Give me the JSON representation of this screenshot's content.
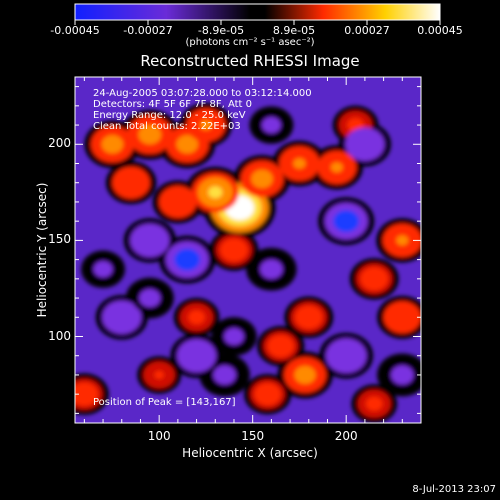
{
  "colorbar": {
    "tick_labels": [
      "-0.00045",
      "-0.00027",
      "-8.9e-05",
      "8.9e-05",
      "0.00027",
      "0.00045"
    ],
    "units": "(photons cm⁻² s⁻¹ asec⁻²)",
    "colors": [
      "#1020ff",
      "#6a2bd8",
      "#000000",
      "#ff2a00",
      "#ffd000",
      "#ffffff"
    ]
  },
  "info": {
    "time_range": "24-Aug-2005 03:07:28.000 to 03:12:14.000",
    "detectors": "Detectors: 4F 5F 6F 7F 8F, Att 0",
    "energy": "Energy Range: 12.0 - 25.0 keV",
    "clean": "Clean     Total counts: 2.22E+03",
    "peak": "Position of Peak = [143,167]"
  },
  "footer": "8-Jul-2013 23:07",
  "chart_data": {
    "type": "heatmap",
    "title": "Reconstructed RHESSI Image",
    "xlabel": "Heliocentric X (arcsec)",
    "ylabel": "Heliocentric Y (arcsec)",
    "xlim": [
      55,
      240
    ],
    "ylim": [
      55,
      235
    ],
    "x_ticks": [
      100,
      150,
      200
    ],
    "y_ticks": [
      100,
      150,
      200
    ],
    "peak": [
      143,
      167
    ],
    "intensity_range": [
      -0.00045,
      0.00045
    ],
    "sources": [
      {
        "x": 143,
        "y": 167,
        "value": 0.00045
      },
      {
        "x": 130,
        "y": 175,
        "value": 0.0003
      },
      {
        "x": 155,
        "y": 182,
        "value": 0.00025
      },
      {
        "x": 175,
        "y": 190,
        "value": 0.00022
      },
      {
        "x": 195,
        "y": 188,
        "value": 0.0002
      },
      {
        "x": 75,
        "y": 200,
        "value": 0.00025
      },
      {
        "x": 95,
        "y": 205,
        "value": 0.00028
      },
      {
        "x": 115,
        "y": 200,
        "value": 0.00025
      },
      {
        "x": 125,
        "y": 210,
        "value": 0.0002
      },
      {
        "x": 85,
        "y": 180,
        "value": 0.00018
      },
      {
        "x": 110,
        "y": 170,
        "value": 0.00018
      },
      {
        "x": 140,
        "y": 145,
        "value": 0.00016
      },
      {
        "x": 230,
        "y": 150,
        "value": 0.0002
      },
      {
        "x": 215,
        "y": 130,
        "value": 0.00016
      },
      {
        "x": 180,
        "y": 110,
        "value": 0.00016
      },
      {
        "x": 165,
        "y": 95,
        "value": 0.00014
      },
      {
        "x": 178,
        "y": 80,
        "value": 0.00024
      },
      {
        "x": 158,
        "y": 70,
        "value": 0.00014
      },
      {
        "x": 230,
        "y": 110,
        "value": 0.00018
      },
      {
        "x": 60,
        "y": 70,
        "value": 0.00016
      },
      {
        "x": 120,
        "y": 110,
        "value": 0.00012
      },
      {
        "x": 100,
        "y": 80,
        "value": 0.0001
      },
      {
        "x": 215,
        "y": 65,
        "value": 0.00012
      },
      {
        "x": 205,
        "y": 210,
        "value": 0.00012
      },
      {
        "x": 70,
        "y": 135,
        "value": -0.0001
      },
      {
        "x": 95,
        "y": 150,
        "value": -0.0002
      },
      {
        "x": 115,
        "y": 140,
        "value": -0.00025
      },
      {
        "x": 80,
        "y": 110,
        "value": -0.0002
      },
      {
        "x": 200,
        "y": 160,
        "value": -0.00025
      },
      {
        "x": 210,
        "y": 200,
        "value": -0.0002
      },
      {
        "x": 160,
        "y": 135,
        "value": -0.00018
      },
      {
        "x": 200,
        "y": 90,
        "value": -0.00022
      },
      {
        "x": 135,
        "y": 80,
        "value": -0.00018
      },
      {
        "x": 120,
        "y": 90,
        "value": -0.0002
      },
      {
        "x": 230,
        "y": 80,
        "value": -0.00018
      },
      {
        "x": 160,
        "y": 210,
        "value": -0.0001
      },
      {
        "x": 95,
        "y": 120,
        "value": -0.00015
      },
      {
        "x": 140,
        "y": 100,
        "value": -0.00012
      }
    ]
  }
}
